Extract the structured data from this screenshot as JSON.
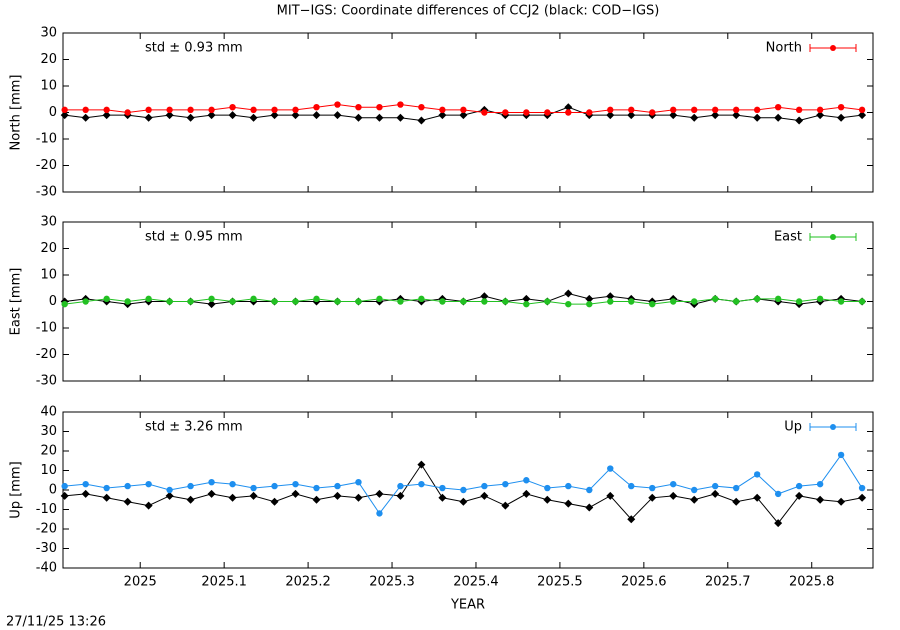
{
  "title": "MIT−IGS: Coordinate differences of CCJ2 (black: COD−IGS)",
  "xlabel": "YEAR",
  "timestamp": "27/11/25 13:26",
  "chart_data": [
    {
      "type": "line",
      "ylabel": "North [mm]",
      "annotation": "std ± 0.93 mm",
      "legend": "top-right",
      "xlim": [
        2024.908,
        2025.873
      ],
      "xticks": [
        2025,
        2025.1,
        2025.2,
        2025.3,
        2025.4,
        2025.5,
        2025.6,
        2025.7,
        2025.8
      ],
      "ylim": [
        -30,
        30
      ],
      "yticks": [
        -30,
        -20,
        -10,
        0,
        10,
        20,
        30
      ],
      "x": [
        2024.91,
        2024.935,
        2024.96,
        2024.985,
        2025.01,
        2025.035,
        2025.06,
        2025.085,
        2025.11,
        2025.135,
        2025.16,
        2025.185,
        2025.21,
        2025.235,
        2025.26,
        2025.285,
        2025.31,
        2025.335,
        2025.36,
        2025.385,
        2025.41,
        2025.435,
        2025.46,
        2025.485,
        2025.51,
        2025.535,
        2025.56,
        2025.585,
        2025.61,
        2025.635,
        2025.66,
        2025.685,
        2025.71,
        2025.735,
        2025.76,
        2025.785,
        2025.81,
        2025.835,
        2025.86
      ],
      "series": [
        {
          "color": "#000000",
          "values": [
            -1,
            -2,
            -1,
            -1,
            -2,
            -1,
            -2,
            -1,
            -1,
            -2,
            -1,
            -1,
            -1,
            -1,
            -2,
            -2,
            -2,
            -3,
            -1,
            -1,
            1,
            -1,
            -1,
            -1,
            2,
            -1,
            -1,
            -1,
            -1,
            -1,
            -2,
            -1,
            -1,
            -2,
            -2,
            -3,
            -1,
            -2,
            -1
          ]
        },
        {
          "name": "North",
          "color": "#ff0000",
          "values": [
            1,
            1,
            1,
            0,
            1,
            1,
            1,
            1,
            2,
            1,
            1,
            1,
            2,
            3,
            2,
            2,
            3,
            2,
            1,
            1,
            0,
            0,
            0,
            0,
            0,
            0,
            1,
            1,
            0,
            1,
            1,
            1,
            1,
            1,
            2,
            1,
            1,
            2,
            1
          ]
        }
      ]
    },
    {
      "type": "line",
      "ylabel": "East [mm]",
      "annotation": "std ± 0.95 mm",
      "legend": "top-right",
      "xlim": [
        2024.908,
        2025.873
      ],
      "xticks": [
        2025,
        2025.1,
        2025.2,
        2025.3,
        2025.4,
        2025.5,
        2025.6,
        2025.7,
        2025.8
      ],
      "ylim": [
        -30,
        30
      ],
      "yticks": [
        -30,
        -20,
        -10,
        0,
        10,
        20,
        30
      ],
      "x": [
        2024.91,
        2024.935,
        2024.96,
        2024.985,
        2025.01,
        2025.035,
        2025.06,
        2025.085,
        2025.11,
        2025.135,
        2025.16,
        2025.185,
        2025.21,
        2025.235,
        2025.26,
        2025.285,
        2025.31,
        2025.335,
        2025.36,
        2025.385,
        2025.41,
        2025.435,
        2025.46,
        2025.485,
        2025.51,
        2025.535,
        2025.56,
        2025.585,
        2025.61,
        2025.635,
        2025.66,
        2025.685,
        2025.71,
        2025.735,
        2025.76,
        2025.785,
        2025.81,
        2025.835,
        2025.86
      ],
      "series": [
        {
          "color": "#000000",
          "values": [
            0,
            1,
            0,
            -1,
            0,
            0,
            0,
            -1,
            0,
            0,
            0,
            0,
            0,
            0,
            0,
            0,
            1,
            0,
            1,
            0,
            2,
            0,
            1,
            0,
            3,
            1,
            2,
            1,
            0,
            1,
            -1,
            1,
            0,
            1,
            0,
            -1,
            0,
            1,
            0
          ]
        },
        {
          "name": "East",
          "color": "#22c022",
          "values": [
            -1,
            0,
            1,
            0,
            1,
            0,
            0,
            1,
            0,
            1,
            0,
            0,
            1,
            0,
            0,
            1,
            0,
            1,
            0,
            0,
            0,
            0,
            -1,
            0,
            -1,
            -1,
            0,
            0,
            -1,
            0,
            0,
            1,
            0,
            1,
            1,
            0,
            1,
            0,
            0
          ]
        }
      ]
    },
    {
      "type": "line",
      "ylabel": "Up [mm]",
      "annotation": "std ± 3.26 mm",
      "legend": "top-right",
      "xlim": [
        2024.908,
        2025.873
      ],
      "xticks": [
        2025,
        2025.1,
        2025.2,
        2025.3,
        2025.4,
        2025.5,
        2025.6,
        2025.7,
        2025.8
      ],
      "ylim": [
        -40,
        40
      ],
      "yticks": [
        -40,
        -30,
        -20,
        -10,
        0,
        10,
        20,
        30,
        40
      ],
      "x": [
        2024.91,
        2024.935,
        2024.96,
        2024.985,
        2025.01,
        2025.035,
        2025.06,
        2025.085,
        2025.11,
        2025.135,
        2025.16,
        2025.185,
        2025.21,
        2025.235,
        2025.26,
        2025.285,
        2025.31,
        2025.335,
        2025.36,
        2025.385,
        2025.41,
        2025.435,
        2025.46,
        2025.485,
        2025.51,
        2025.535,
        2025.56,
        2025.585,
        2025.61,
        2025.635,
        2025.66,
        2025.685,
        2025.71,
        2025.735,
        2025.76,
        2025.785,
        2025.81,
        2025.835,
        2025.86
      ],
      "series": [
        {
          "color": "#000000",
          "values": [
            -3,
            -2,
            -4,
            -6,
            -8,
            -3,
            -5,
            -2,
            -4,
            -3,
            -6,
            -2,
            -5,
            -3,
            -4,
            -2,
            -3,
            13,
            -4,
            -6,
            -3,
            -8,
            -2,
            -5,
            -7,
            -9,
            -3,
            -15,
            -4,
            -3,
            -5,
            -2,
            -6,
            -4,
            -17,
            -3,
            -5,
            -6,
            -4
          ]
        },
        {
          "name": "Up",
          "color": "#1e8fef",
          "values": [
            2,
            3,
            1,
            2,
            3,
            0,
            2,
            4,
            3,
            1,
            2,
            3,
            1,
            2,
            4,
            -12,
            2,
            3,
            1,
            0,
            2,
            3,
            5,
            1,
            2,
            0,
            11,
            2,
            1,
            3,
            0,
            2,
            1,
            8,
            -2,
            2,
            3,
            18,
            1
          ]
        }
      ]
    }
  ]
}
